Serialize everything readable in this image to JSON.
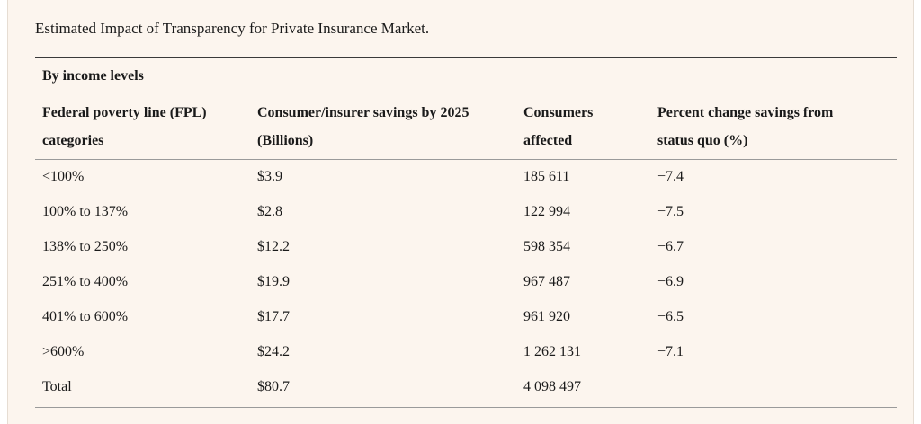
{
  "caption": "Estimated Impact of Transparency for Private Insurance Market.",
  "group_label": "By income levels",
  "headers": {
    "col1_line1": "Federal poverty line (FPL)",
    "col1_line2": "categories",
    "col2_line1": "Consumer/insurer savings by 2025",
    "col2_line2": "(Billions)",
    "col3_line1": "Consumers",
    "col3_line2": "affected",
    "col4_line1": "Percent change savings from",
    "col4_line2": "status quo (%)"
  },
  "rows": [
    {
      "category": "<100%",
      "savings": "$3.9",
      "consumers": "185 611",
      "pct": "−7.4"
    },
    {
      "category": "100% to 137%",
      "savings": "$2.8",
      "consumers": "122 994",
      "pct": "−7.5"
    },
    {
      "category": "138% to 250%",
      "savings": "$12.2",
      "consumers": "598 354",
      "pct": "−6.7"
    },
    {
      "category": "251% to 400%",
      "savings": "$19.9",
      "consumers": "967 487",
      "pct": "−6.9"
    },
    {
      "category": "401% to 600%",
      "savings": "$17.7",
      "consumers": "961 920",
      "pct": "−6.5"
    },
    {
      "category": ">600%",
      "savings": "$24.2",
      "consumers": "1 262 131",
      "pct": "−7.1"
    },
    {
      "category": "Total",
      "savings": "$80.7",
      "consumers": "4 098 497",
      "pct": ""
    }
  ]
}
